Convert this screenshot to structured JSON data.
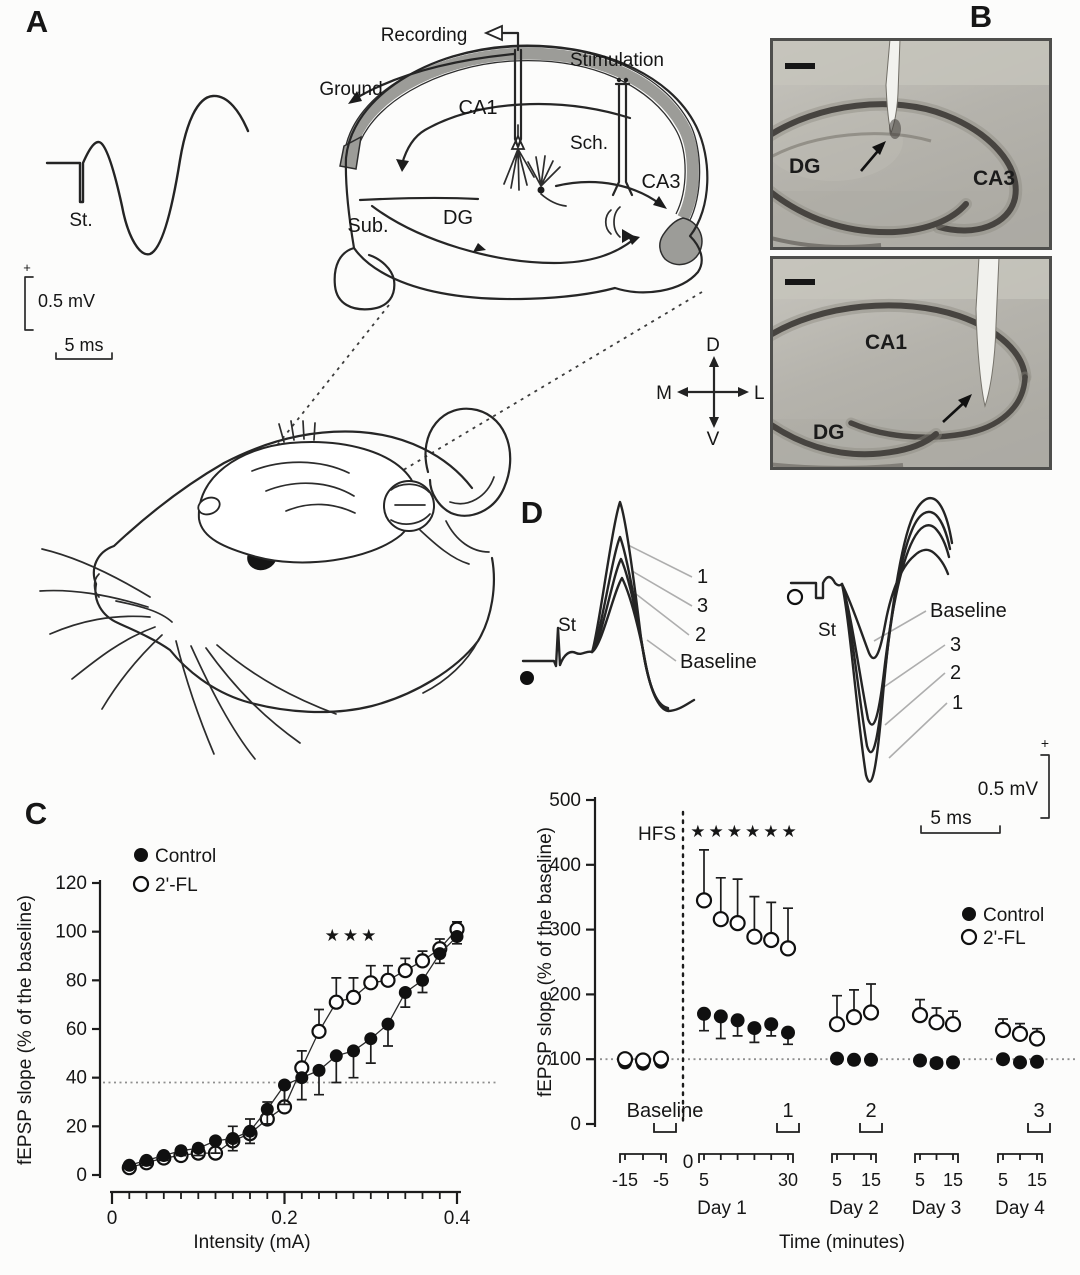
{
  "figure": {
    "panel_labels": {
      "a": "A",
      "b": "B",
      "c": "C",
      "d": "D"
    }
  },
  "panelA": {
    "trace": {
      "stim_label": "St."
    },
    "scale": {
      "plus": "+",
      "vertical": "0.5 mV",
      "horizontal": "5 ms"
    },
    "schematic": {
      "recording": "Recording",
      "stimulation": "Stimulation",
      "ground": "Ground",
      "ca1": "CA1",
      "sch": "Sch.",
      "ca3": "CA3",
      "sub": "Sub.",
      "dg": "DG"
    }
  },
  "panelB": {
    "top_image": {
      "label_left": "DG",
      "label_right": "CA3"
    },
    "bottom_image": {
      "label_center": "CA1",
      "label_left": "DG"
    },
    "compass": {
      "up": "D",
      "down": "V",
      "left": "M",
      "right": "L"
    }
  },
  "panelD": {
    "left_trace": {
      "stim_label": "St",
      "peak_labels": [
        "1",
        "3",
        "2",
        "Baseline"
      ]
    },
    "right_trace": {
      "stim_label": "St",
      "trough_labels": [
        "Baseline",
        "3",
        "2",
        "1"
      ]
    },
    "scale": {
      "plus": "+",
      "vertical": "0.5 mV",
      "horizontal": "5 ms"
    }
  },
  "colors": {
    "ink": "#1a1a1a",
    "gray_band": "#9c9c98",
    "histology_bg": "#b5b3ac",
    "dotted": "#8f8f8f"
  },
  "chart_data": [
    {
      "id": "input-output-curve",
      "type": "scatter",
      "panel": "C",
      "xlabel": "Intensity (mA)",
      "ylabel": "fEPSP slope (% of the baseline)",
      "xlim": [
        0,
        0.4
      ],
      "ylim": [
        0,
        120
      ],
      "xtick_values": [
        0,
        0.2,
        0.4
      ],
      "xtick_labels": [
        "0",
        "0.2",
        "0.4"
      ],
      "ytick_values": [
        0,
        20,
        40,
        60,
        80,
        100,
        120
      ],
      "minor_xtick_step": 0.02,
      "baseline_dotted_line": 38,
      "significance_marks": "★★★",
      "legend": [
        {
          "label": "Control",
          "marker": "filled"
        },
        {
          "label": "2'-FL",
          "marker": "open"
        }
      ],
      "x": [
        0.02,
        0.04,
        0.06,
        0.08,
        0.1,
        0.12,
        0.14,
        0.16,
        0.18,
        0.2,
        0.22,
        0.24,
        0.26,
        0.28,
        0.3,
        0.32,
        0.34,
        0.36,
        0.38,
        0.4
      ],
      "series": [
        {
          "name": "Control",
          "marker": "filled",
          "error_direction": "down",
          "values": [
            4,
            6,
            8,
            10,
            11,
            14,
            15,
            18,
            27,
            37,
            40,
            43,
            49,
            51,
            56,
            62,
            75,
            80,
            91,
            98
          ],
          "errors": [
            1,
            2,
            2,
            2,
            3,
            5,
            5,
            5,
            6,
            8,
            9,
            10,
            11,
            11,
            10,
            9,
            6,
            5,
            4,
            3
          ]
        },
        {
          "name": "2'-FL",
          "marker": "open",
          "error_direction": "up",
          "values": [
            3,
            5,
            7,
            8,
            9,
            9,
            14,
            17,
            23,
            28,
            44,
            59,
            71,
            73,
            79,
            80,
            84,
            88,
            93,
            101
          ],
          "errors": [
            1,
            2,
            2,
            3,
            3,
            4,
            6,
            6,
            7,
            8,
            7,
            9,
            10,
            8,
            7,
            6,
            5,
            4,
            4,
            3
          ]
        }
      ]
    },
    {
      "id": "ltp-time-course",
      "type": "scatter",
      "panel": "D",
      "xlabel": "Time (minutes)",
      "ylabel": "fEPSP slope (% of the baseline)",
      "ylim": [
        0,
        500
      ],
      "ytick_values": [
        0,
        100,
        200,
        300,
        400,
        500
      ],
      "baseline_dotted_line": 100,
      "hfs_label": "HFS",
      "significance_marks": "★★★★★★",
      "zero_label": "0",
      "legend": [
        {
          "label": "Control",
          "marker": "filled"
        },
        {
          "label": "2'-FL",
          "marker": "open"
        }
      ],
      "episode_labels": [
        "Baseline",
        "1",
        "2",
        "3"
      ],
      "groups": [
        {
          "name": "",
          "tick_labels": [
            "-15",
            "-5"
          ],
          "times": [
            -15,
            -10,
            -5
          ],
          "series": [
            {
              "name": "Control",
              "values": [
                95,
                93,
                96
              ],
              "errors": [
                5,
                5,
                5
              ]
            },
            {
              "name": "2'-FL",
              "values": [
                100,
                98,
                101
              ],
              "errors": [
                6,
                6,
                6
              ]
            }
          ]
        },
        {
          "name": "Day 1",
          "tick_labels": [
            "5",
            "30"
          ],
          "times": [
            5,
            10,
            15,
            20,
            25,
            30
          ],
          "series": [
            {
              "name": "Control",
              "values": [
                170,
                166,
                160,
                148,
                154,
                141
              ],
              "errors": [
                26,
                34,
                24,
                22,
                18,
                18
              ]
            },
            {
              "name": "2'-FL",
              "values": [
                345,
                316,
                310,
                289,
                284,
                271
              ],
              "errors": [
                78,
                64,
                68,
                62,
                58,
                62
              ]
            }
          ]
        },
        {
          "name": "Day 2",
          "tick_labels": [
            "5",
            "15"
          ],
          "times": [
            5,
            10,
            15
          ],
          "series": [
            {
              "name": "Control",
              "values": [
                101,
                99,
                99
              ],
              "errors": [
                7,
                7,
                7
              ]
            },
            {
              "name": "2'-FL",
              "values": [
                154,
                165,
                172
              ],
              "errors": [
                44,
                42,
                44
              ]
            }
          ]
        },
        {
          "name": "Day 3",
          "tick_labels": [
            "5",
            "15"
          ],
          "times": [
            5,
            10,
            15
          ],
          "series": [
            {
              "name": "Control",
              "values": [
                98,
                94,
                95
              ],
              "errors": [
                6,
                6,
                6
              ]
            },
            {
              "name": "2'-FL",
              "values": [
                168,
                157,
                154
              ],
              "errors": [
                24,
                22,
                20
              ]
            }
          ]
        },
        {
          "name": "Day 4",
          "tick_labels": [
            "5",
            "15"
          ],
          "times": [
            5,
            10,
            15
          ],
          "series": [
            {
              "name": "Control",
              "values": [
                100,
                95,
                96
              ],
              "errors": [
                6,
                6,
                6
              ]
            },
            {
              "name": "2'-FL",
              "values": [
                145,
                139,
                132
              ],
              "errors": [
                17,
                16,
                15
              ]
            }
          ]
        }
      ]
    }
  ]
}
